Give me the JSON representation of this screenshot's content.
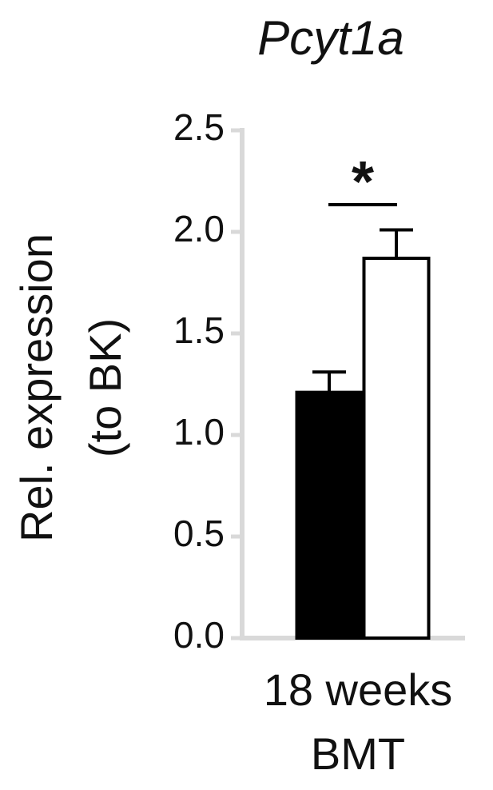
{
  "chart_data": {
    "type": "bar",
    "title": "Pcyt1a",
    "ylabel_lines": [
      "Rel. expression",
      "(to BK)"
    ],
    "xlabel_lines": [
      "18 weeks",
      "BMT"
    ],
    "ylim": [
      0,
      2.5
    ],
    "yticks": [
      "0.0",
      "0.5",
      "1.0",
      "1.5",
      "2.0",
      "2.5"
    ],
    "grid": false,
    "bars": [
      {
        "value": 1.21,
        "error": 0.1,
        "fill": "#000000"
      },
      {
        "value": 1.87,
        "error": 0.14,
        "fill": "#ffffff"
      }
    ],
    "significance": "*",
    "colors": {
      "axis": "#d9d9d9",
      "bar_edge": "#000000",
      "text": "#111111"
    }
  }
}
